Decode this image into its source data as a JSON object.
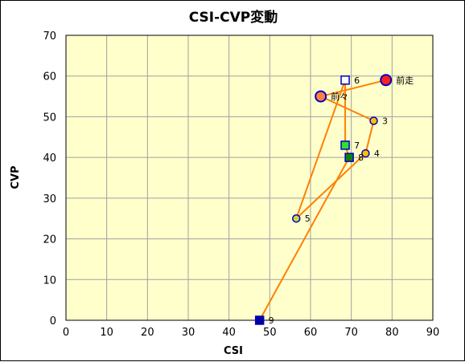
{
  "chart_data": {
    "type": "scatter",
    "title": "CSI-CVP変動",
    "xlabel": "CSI",
    "ylabel": "CVP",
    "xlim": [
      0,
      90
    ],
    "ylim": [
      0,
      70
    ],
    "xticks": [
      0,
      10,
      20,
      30,
      40,
      50,
      60,
      70,
      80,
      90
    ],
    "yticks": [
      0,
      10,
      20,
      30,
      40,
      50,
      60,
      70
    ],
    "grid": true,
    "colors": {
      "plot_bg": "#ffffcc",
      "grid": "#a0a0a0",
      "line": "#ff8000"
    },
    "path_order": [
      "9",
      "8",
      "7",
      "6",
      "5",
      "4",
      "3",
      "前々",
      "前走"
    ],
    "points": [
      {
        "label": "前走",
        "x": 78.5,
        "y": 59,
        "shape": "circle",
        "fill": "#ff2020",
        "size": "large"
      },
      {
        "label": "前々",
        "x": 62.5,
        "y": 55,
        "shape": "circle",
        "fill": "#ff8040",
        "size": "large"
      },
      {
        "label": "3",
        "x": 75.5,
        "y": 49,
        "shape": "circle",
        "fill": "#ffc000",
        "size": "small"
      },
      {
        "label": "4",
        "x": 73.5,
        "y": 41,
        "shape": "circle",
        "fill": "#ffc000",
        "size": "small"
      },
      {
        "label": "5",
        "x": 56.5,
        "y": 25,
        "shape": "circle",
        "fill": "#c8d840",
        "size": "small"
      },
      {
        "label": "6",
        "x": 68.5,
        "y": 59,
        "shape": "square",
        "fill": "#ffffff",
        "size": "small"
      },
      {
        "label": "7",
        "x": 68.5,
        "y": 43,
        "shape": "square",
        "fill": "#30e030",
        "size": "small"
      },
      {
        "label": "8",
        "x": 69.5,
        "y": 40,
        "shape": "square",
        "fill": "#108010",
        "size": "small"
      },
      {
        "label": "9",
        "x": 47.5,
        "y": 0,
        "shape": "square",
        "fill": "#0000a0",
        "size": "small"
      }
    ]
  }
}
